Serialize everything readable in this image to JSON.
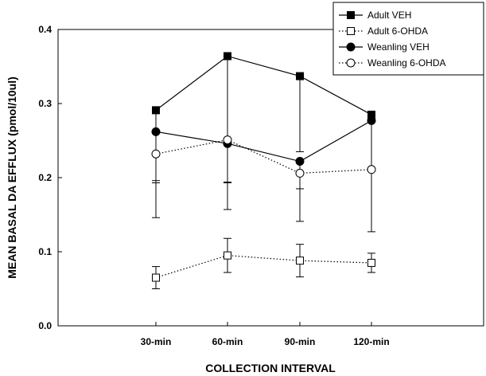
{
  "chart_data": {
    "type": "line",
    "categories": [
      "30-min",
      "60-min",
      "90-min",
      "120-min"
    ],
    "xlabel": "COLLECTION INTERVAL",
    "ylabel": "MEAN BASAL DA EFFLUX (pmol/10ul)",
    "ylim": [
      0.0,
      0.4
    ],
    "yticks": [
      "0.0",
      "0.1",
      "0.2",
      "0.3",
      "0.4"
    ],
    "grid": false,
    "legend_position": "top-right",
    "series": [
      {
        "name": "Adult VEH",
        "marker": "filled-square",
        "line": "solid",
        "values": [
          0.291,
          0.364,
          0.337,
          0.285
        ],
        "errors": [
          0.098,
          0.17,
          0.102,
          0.072
        ],
        "error_dir": "down"
      },
      {
        "name": "Adult 6-OHDA",
        "marker": "open-square",
        "line": "dotted",
        "values": [
          0.065,
          0.095,
          0.088,
          0.085
        ],
        "errors": [
          0.015,
          0.023,
          0.022,
          0.013
        ],
        "error_dir": "both"
      },
      {
        "name": "Weanling VEH",
        "marker": "filled-circle",
        "line": "solid",
        "values": [
          0.262,
          0.246,
          0.222,
          0.277
        ],
        "errors": [
          0.066,
          0.053,
          0.037,
          0.068
        ],
        "error_dir": "down"
      },
      {
        "name": "Weanling 6-OHDA",
        "marker": "open-circle",
        "line": "dotted",
        "values": [
          0.232,
          0.251,
          0.206,
          0.211
        ],
        "errors": [
          0.086,
          0.094,
          0.065,
          0.084
        ],
        "error_dir": "down"
      }
    ]
  }
}
